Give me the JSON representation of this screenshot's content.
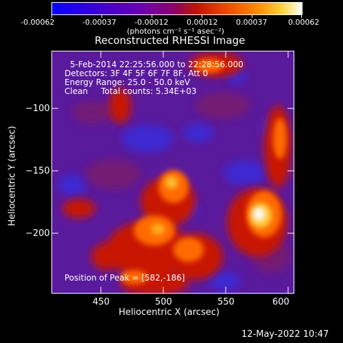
{
  "colorbar": {
    "tick_labels": [
      "-0.00062",
      "-0.00037",
      "-0.00012",
      "0.00012",
      "0.00037",
      "0.00062"
    ],
    "unit_label": "(photons cm⁻² s⁻¹ asec⁻²)"
  },
  "plot": {
    "title": "Reconstructed RHESSI Image",
    "xlabel": "Heliocentric X (arcsec)",
    "ylabel": "Heliocentric Y (arcsec)",
    "x_ticks": [
      "450",
      "500",
      "550",
      "600"
    ],
    "y_ticks": [
      "−100",
      "−150",
      "−200"
    ],
    "info_lines": [
      "5-Feb-2014 22:25:56.000 to 22:28:56.000",
      "Detectors: 3F 4F 5F 6F 7F 8F, Att 0",
      "Energy Range: 25.0 - 50.0 keV",
      "Clean     Total counts: 5.34E+03"
    ],
    "peak_label": "Position of Peak = [582,-186]",
    "xlim": [
      413,
      608
    ],
    "ylim": [
      -248,
      -57
    ]
  },
  "footer": {
    "date": "12-May-2022 10:47"
  }
}
